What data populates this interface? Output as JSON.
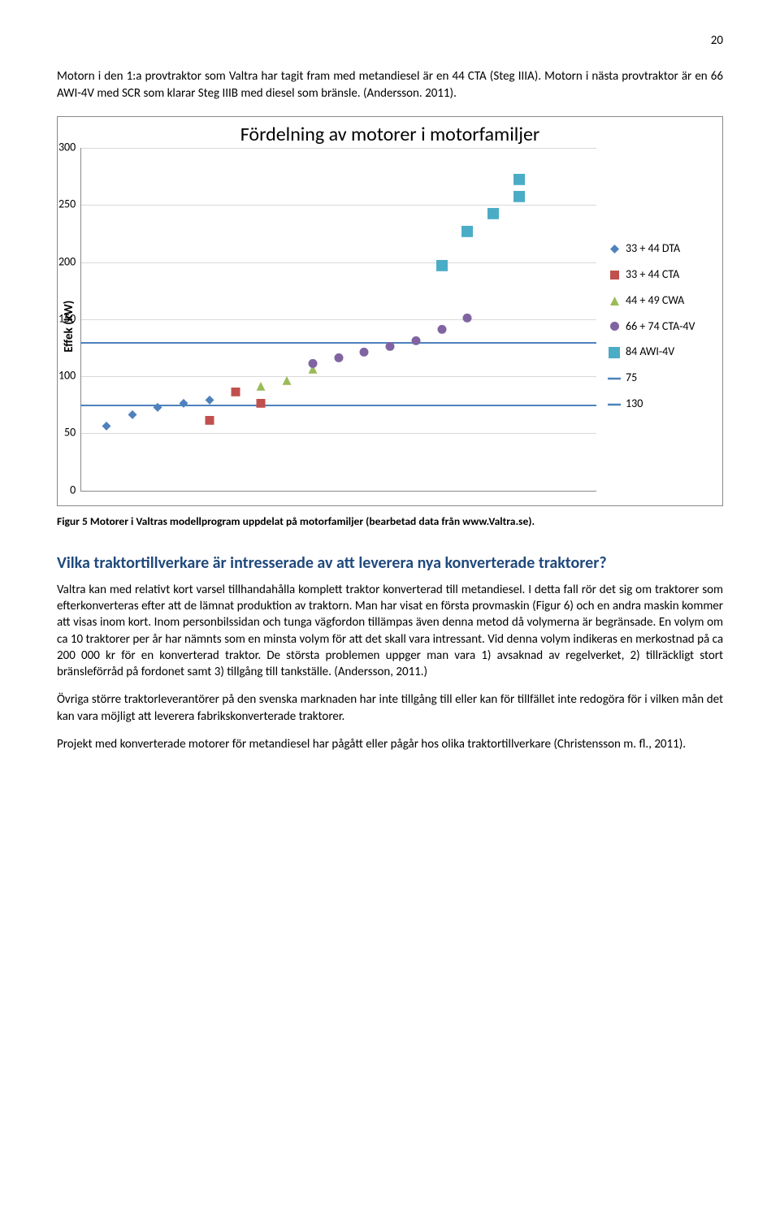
{
  "page_number": "20",
  "intro_para": "Motorn i den 1:a provtraktor som Valtra har tagit fram med metandiesel är en 44 CTA (Steg IIIA). Motorn i nästa provtraktor är en 66 AWI-4V med SCR som klarar Steg IIIB med diesel som bränsle. (Andersson. 2011).",
  "chart": {
    "title": "Fördelning av motorer i motorfamiljer",
    "ylabel": "Effek (kW)",
    "ylim": [
      0,
      300
    ],
    "ytick_step": 50,
    "background_color": "#ffffff",
    "grid_color": "#d9d9d9",
    "axis_color": "#888888",
    "x_range": [
      0,
      20
    ],
    "series": {
      "dta": {
        "label": "33 + 44 DTA",
        "color": "#4f81bd",
        "shape": "diamond",
        "points": [
          [
            1,
            55
          ],
          [
            2,
            65
          ],
          [
            3,
            72
          ],
          [
            4,
            75
          ],
          [
            5,
            78
          ]
        ]
      },
      "cta": {
        "label": "33 + 44 CTA",
        "color": "#c0504d",
        "shape": "square",
        "points": [
          [
            5,
            60
          ],
          [
            6,
            85
          ],
          [
            7,
            75
          ]
        ]
      },
      "cwa": {
        "label": "44 + 49 CWA",
        "color": "#9bbb59",
        "shape": "triangle",
        "points": [
          [
            7,
            90
          ],
          [
            8,
            95
          ],
          [
            9,
            105
          ]
        ]
      },
      "cta4v": {
        "label": "66 + 74 CTA-4V",
        "color": "#8064a2",
        "shape": "circle",
        "points": [
          [
            9,
            110
          ],
          [
            10,
            115
          ],
          [
            11,
            120
          ],
          [
            12,
            125
          ],
          [
            13,
            130
          ],
          [
            14,
            140
          ],
          [
            15,
            150
          ]
        ]
      },
      "awi4v": {
        "label": "84 AWI-4V",
        "color": "#4bacc6",
        "shape": "bigsquare",
        "points": [
          [
            14,
            195
          ],
          [
            15,
            225
          ],
          [
            16,
            240
          ],
          [
            17,
            255
          ],
          [
            17,
            270
          ]
        ]
      }
    },
    "hlines": [
      {
        "label": "75",
        "y": 75,
        "color": "#4f81bd"
      },
      {
        "label": "130",
        "y": 130,
        "color": "#4f81bd"
      }
    ]
  },
  "caption": "Figur 5 Motorer i Valtras modellprogram uppdelat på motorfamiljer (bearbetad data från www.Valtra.se).",
  "section_heading": "Vilka traktortillverkare är intresserade av att leverera nya konverterade traktorer?",
  "para1": "Valtra kan med relativt kort varsel tillhandahålla komplett traktor konverterad till metandiesel. I detta fall rör det sig om traktorer som efterkonverteras efter att de lämnat produktion av traktorn. Man har visat en första provmaskin (Figur 6) och en andra maskin kommer att visas inom kort. Inom personbilssidan och tunga vägfordon tillämpas även denna metod då volymerna är begränsade. En volym om ca 10 traktorer per år har nämnts som en minsta volym för att det skall vara intressant. Vid denna volym indikeras en merkostnad på ca 200 000 kr för en konverterad traktor. De största problemen uppger man vara 1) avsaknad av regelverket, 2) tillräckligt stort bränsleförråd på fordonet samt 3) tillgång till tankställe. (Andersson, 2011.)",
  "para2": "Övriga större traktorleverantörer på den svenska marknaden har inte tillgång till eller kan för tillfället inte redogöra för i vilken mån det kan vara möjligt att leverera fabrikskonverterade traktorer.",
  "para3": "Projekt med konverterade motorer för metandiesel har pågått eller pågår hos olika traktortillverkare (Christensson m. fl., 2011)."
}
